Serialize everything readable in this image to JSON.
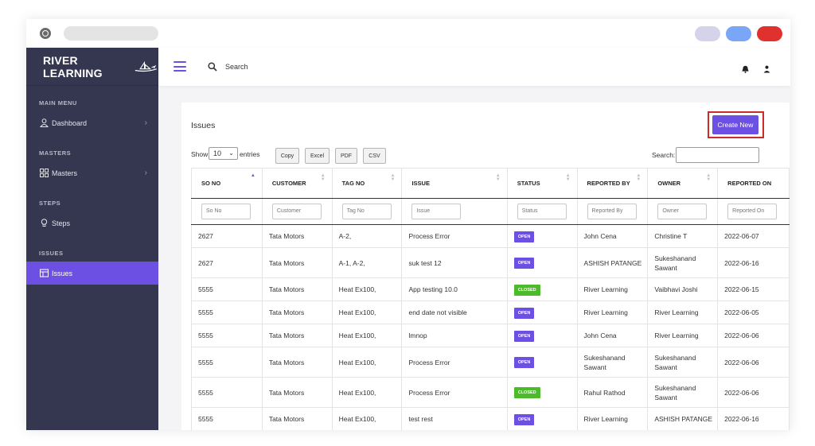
{
  "sidebar": {
    "brand": "RIVER LEARNING",
    "sections": {
      "main_menu": "MAIN MENU",
      "masters": "MASTERS",
      "steps": "STEPS",
      "issues": "ISSUES"
    },
    "items": {
      "dashboard": "Dashboard",
      "masters": "Masters",
      "steps": "Steps",
      "issues": "Issues"
    }
  },
  "topbar": {
    "search_label": "Search"
  },
  "page": {
    "title": "Issues",
    "create_button": "Create New"
  },
  "controls": {
    "show_label": "Show",
    "page_length": "10",
    "entries_label": "entries",
    "buttons": {
      "copy": "Copy",
      "excel": "Excel",
      "pdf": "PDF",
      "csv": "CSV"
    },
    "search_label": "Search:"
  },
  "table": {
    "columns": [
      "SO NO",
      "CUSTOMER",
      "TAG NO",
      "ISSUE",
      "STATUS",
      "REPORTED BY",
      "OWNER",
      "REPORTED ON"
    ],
    "filters": [
      "So No",
      "Customer",
      "Tag No",
      "Issue",
      "Status",
      "Reported By",
      "Owner",
      "Reported On"
    ],
    "rows": [
      [
        "2627",
        "Tata Motors",
        "A-2,",
        "Process Error",
        "OPEN",
        "John Cena",
        "Christine T",
        "2022-06-07"
      ],
      [
        "2627",
        "Tata Motors",
        "A-1, A-2,",
        "suk test 12",
        "OPEN",
        "ASHISH PATANGE",
        "Sukeshanand Sawant",
        "2022-06-16"
      ],
      [
        "5555",
        "Tata Motors",
        "Heat Ex100,",
        "App testing 10.0",
        "CLOSED",
        "River Learning",
        "Vaibhavi Joshi",
        "2022-06-15"
      ],
      [
        "5555",
        "Tata Motors",
        "Heat Ex100,",
        "end date not visible",
        "OPEN",
        "River Learning",
        "River Learning",
        "2022-06-05"
      ],
      [
        "5555",
        "Tata Motors",
        "Heat Ex100,",
        "lmnop",
        "OPEN",
        "John Cena",
        "River Learning",
        "2022-06-06"
      ],
      [
        "5555",
        "Tata Motors",
        "Heat Ex100,",
        "Process Error",
        "OPEN",
        "Sukeshanand Sawant",
        "Sukeshanand Sawant",
        "2022-06-06"
      ],
      [
        "5555",
        "Tata Motors",
        "Heat Ex100,",
        "Process Error",
        "CLOSED",
        "Rahul Rathod",
        "Sukeshanand Sawant",
        "2022-06-06"
      ],
      [
        "5555",
        "Tata Motors",
        "Heat Ex100,",
        "test rest",
        "OPEN",
        "River Learning",
        "ASHISH PATANGE",
        "2022-06-16"
      ]
    ]
  },
  "colors": {
    "sidebar_bg": "#353750",
    "accent": "#6c4fe3",
    "status_open": "#6c4fe3",
    "status_closed": "#4cba2b",
    "highlight_outline": "#cf2a2a"
  }
}
